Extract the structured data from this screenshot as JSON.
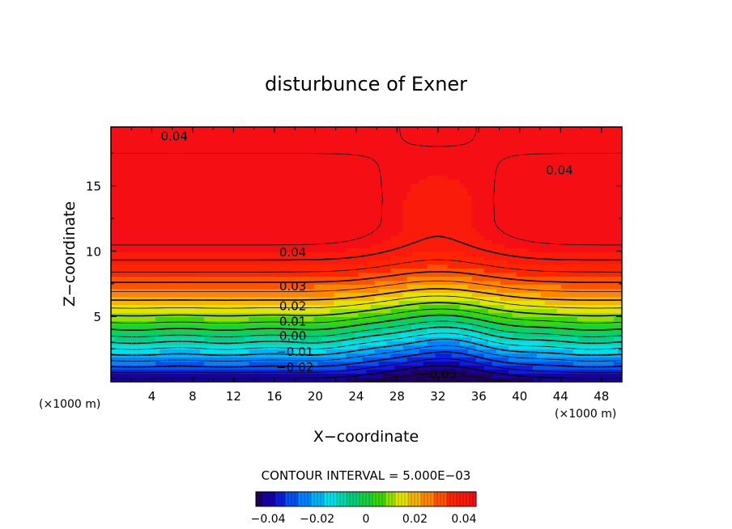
{
  "chart_data": {
    "type": "heatmap",
    "title": "disturbunce of Exner",
    "xlabel": "X−coordinate",
    "ylabel": "Z−coordinate",
    "x_unit_left": "(×1000 m)",
    "x_unit_right": "(×1000 m)",
    "xlim": [
      0,
      50
    ],
    "ylim": [
      0,
      19.5
    ],
    "x_ticks": [
      4,
      8,
      12,
      16,
      20,
      24,
      28,
      32,
      36,
      40,
      44,
      48
    ],
    "y_ticks": [
      5,
      10,
      15
    ],
    "value_range": [
      -0.045,
      0.045
    ],
    "contour_interval_text": "CONTOUR INTERVAL = 5.000E−03",
    "contour_interval": 0.005,
    "negative_contours": "dashed",
    "colormap": "rainbow (blue → cyan → green → yellow → red)",
    "colorbar_ticks": [
      {
        "value": -0.04,
        "label": "−0.04"
      },
      {
        "value": -0.02,
        "label": "−0.02"
      },
      {
        "value": 0,
        "label": "0"
      },
      {
        "value": 0.02,
        "label": "0.02"
      },
      {
        "value": 0.04,
        "label": "0.04"
      }
    ],
    "contour_labels": [
      {
        "text": "0.04",
        "x": 6.2,
        "z": 18.8
      },
      {
        "text": "0.04",
        "x": 43.9,
        "z": 16.2
      },
      {
        "text": "0.04",
        "x": 17.8,
        "z": 9.9
      },
      {
        "text": "0.03",
        "x": 17.8,
        "z": 7.3
      },
      {
        "text": "0.02",
        "x": 17.8,
        "z": 5.8
      },
      {
        "text": "0.01",
        "x": 17.8,
        "z": 4.6
      },
      {
        "text": "0.00",
        "x": 17.8,
        "z": 3.5
      },
      {
        "text": "−0.01",
        "x": 18.0,
        "z": 2.3
      },
      {
        "text": "−0.02",
        "x": 18.0,
        "z": 1.1
      },
      {
        "text": "−0.03",
        "x": 32.0,
        "z": 0.6
      }
    ]
  }
}
